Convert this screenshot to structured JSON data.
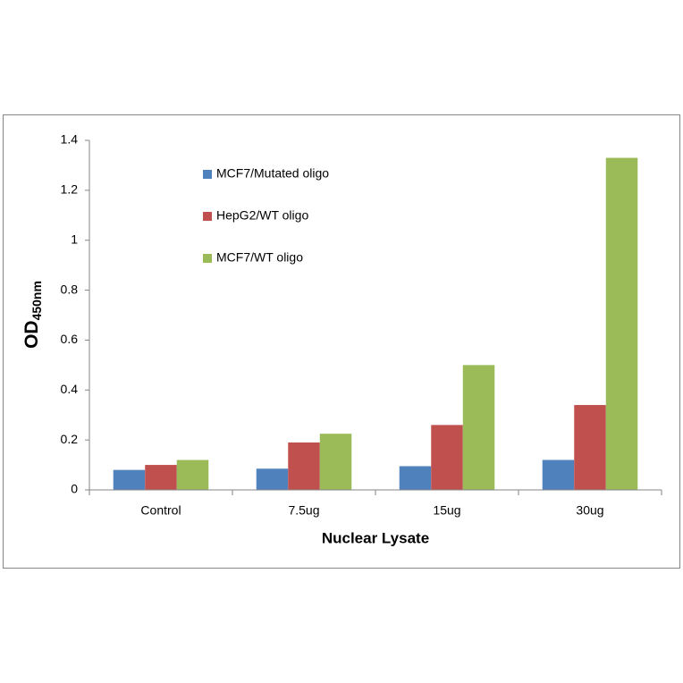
{
  "chart_data": {
    "type": "bar",
    "x_label": "Nuclear Lysate",
    "y_label": "OD",
    "y_label_sub": "450nm",
    "categories": [
      "Control",
      "7.5ug",
      "15ug",
      "30ug"
    ],
    "series": [
      {
        "name": "MCF7/Mutated oligo",
        "color": "#4f81bd",
        "values": [
          0.08,
          0.085,
          0.095,
          0.12
        ]
      },
      {
        "name": "HepG2/WT oligo",
        "color": "#c0504d",
        "values": [
          0.1,
          0.19,
          0.26,
          0.34
        ]
      },
      {
        "name": "MCF7/WT oligo",
        "color": "#9bbb59",
        "values": [
          0.12,
          0.225,
          0.5,
          1.33
        ]
      }
    ],
    "ylim": [
      0,
      1.4
    ],
    "yticks": [
      0,
      0.2,
      0.4,
      0.6,
      0.8,
      1,
      1.2,
      1.4
    ],
    "grid": false
  }
}
